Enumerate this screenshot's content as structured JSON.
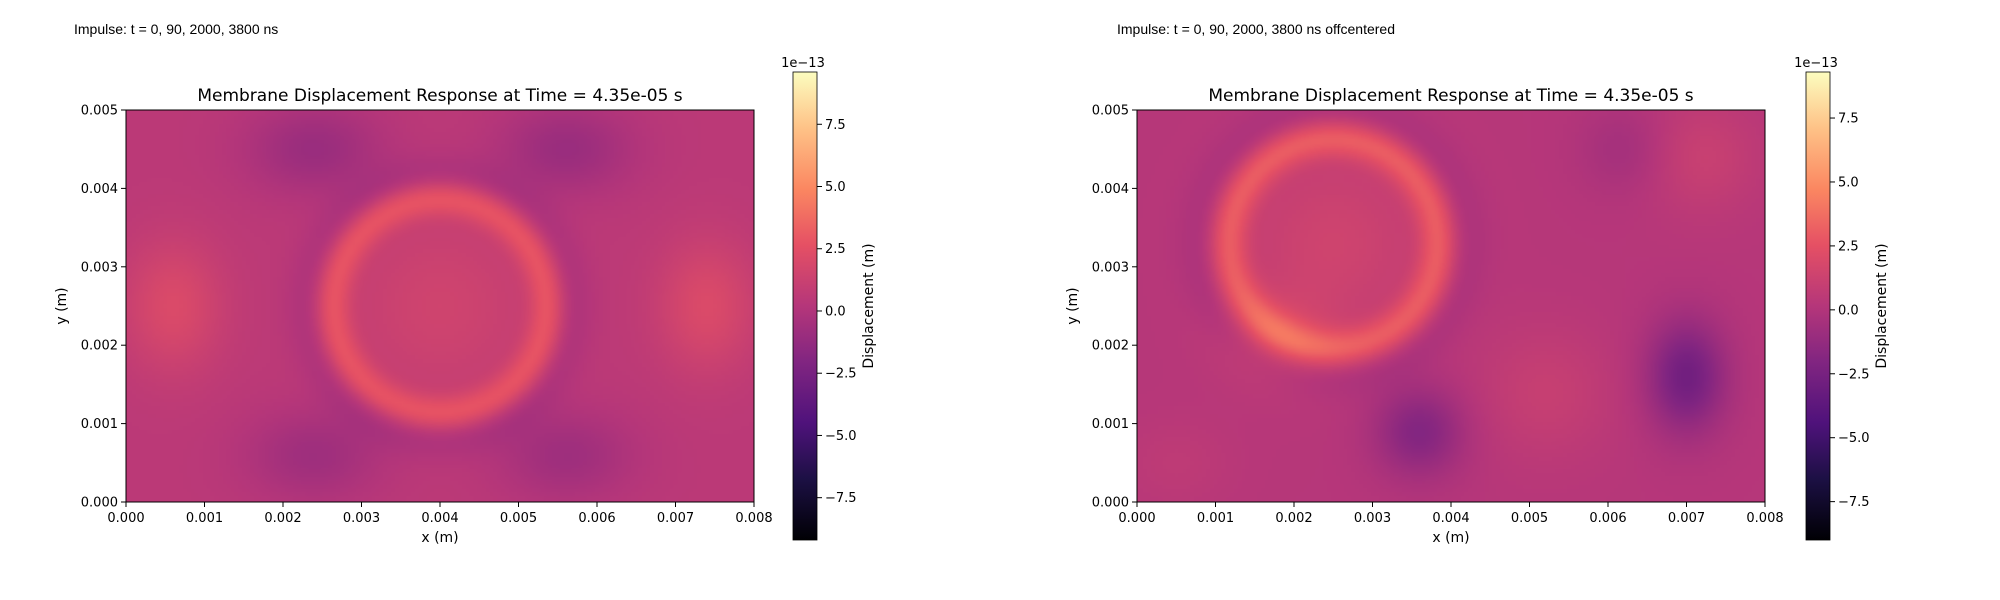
{
  "annotations": [
    "Impulse: t = 0, 90, 2000, 3800 ns",
    "Impulse: t = 0, 90, 2000, 3800 ns offcentered"
  ],
  "chart_data": [
    {
      "type": "heatmap",
      "title": "Membrane Displacement Response at Time = 4.35e-05 s",
      "xlabel": "x (m)",
      "ylabel": "y (m)",
      "xlim": [
        0,
        0.008
      ],
      "ylim": [
        0,
        0.005
      ],
      "x_ticks": [
        "0.000",
        "0.001",
        "0.002",
        "0.003",
        "0.004",
        "0.005",
        "0.006",
        "0.007",
        "0.008"
      ],
      "y_ticks": [
        "0.000",
        "0.001",
        "0.002",
        "0.003",
        "0.004",
        "0.005"
      ],
      "colormap": "magma",
      "colorbar": {
        "label": "Displacement (m)",
        "exponent": "1e−13",
        "range": [
          -9.2,
          9.6
        ],
        "ticks": [
          "−7.5",
          "−5.0",
          "−2.5",
          "0.0",
          "2.5",
          "5.0",
          "7.5"
        ],
        "tick_values": [
          -7.5,
          -5.0,
          -2.5,
          0.0,
          2.5,
          5.0,
          7.5
        ]
      },
      "background_value": 0.5,
      "features": [
        {
          "kind": "ring",
          "cx": 0.004,
          "cy": 0.0025,
          "r": 0.00138,
          "width": 0.00034,
          "amplitude": 2.9
        },
        {
          "kind": "ring",
          "cx": 0.004,
          "cy": 0.0025,
          "r": 0.00155,
          "width": 0.0005,
          "amplitude": -1.2
        },
        {
          "kind": "blob",
          "cx": 0.004,
          "cy": 0.0025,
          "sx": 0.0009,
          "sy": 0.0009,
          "amplitude": 1.0
        },
        {
          "kind": "blob",
          "cx": 0.0006,
          "cy": 0.0025,
          "sx": 0.00045,
          "sy": 0.0006,
          "amplitude": 1.6
        },
        {
          "kind": "blob",
          "cx": 0.0074,
          "cy": 0.0025,
          "sx": 0.00045,
          "sy": 0.0006,
          "amplitude": 1.6
        },
        {
          "kind": "blob",
          "cx": 0.0024,
          "cy": 0.0045,
          "sx": 0.0006,
          "sy": 0.0004,
          "amplitude": -1.5
        },
        {
          "kind": "blob",
          "cx": 0.0056,
          "cy": 0.0045,
          "sx": 0.0006,
          "sy": 0.0004,
          "amplitude": -1.5
        },
        {
          "kind": "blob",
          "cx": 0.0024,
          "cy": 0.0006,
          "sx": 0.0006,
          "sy": 0.0004,
          "amplitude": -1.3
        },
        {
          "kind": "blob",
          "cx": 0.0056,
          "cy": 0.0006,
          "sx": 0.0006,
          "sy": 0.0004,
          "amplitude": -1.3
        }
      ]
    },
    {
      "type": "heatmap",
      "title": "Membrane Displacement Response at Time = 4.35e-05 s",
      "xlabel": "x (m)",
      "ylabel": "y (m)",
      "xlim": [
        0,
        0.008
      ],
      "ylim": [
        0,
        0.005
      ],
      "x_ticks": [
        "0.000",
        "0.001",
        "0.002",
        "0.003",
        "0.004",
        "0.005",
        "0.006",
        "0.007",
        "0.008"
      ],
      "y_ticks": [
        "0.000",
        "0.001",
        "0.002",
        "0.003",
        "0.004",
        "0.005"
      ],
      "colormap": "magma",
      "colorbar": {
        "label": "Displacement (m)",
        "exponent": "1e−13",
        "range": [
          -9.0,
          9.3
        ],
        "ticks": [
          "−7.5",
          "−5.0",
          "−2.5",
          "0.0",
          "2.5",
          "5.0",
          "7.5"
        ],
        "tick_values": [
          -7.5,
          -5.0,
          -2.5,
          0.0,
          2.5,
          5.0,
          7.5
        ]
      },
      "background_value": 0.2,
      "features": [
        {
          "kind": "ring",
          "cx": 0.0025,
          "cy": 0.0033,
          "r": 0.00135,
          "width": 0.00036,
          "amplitude": 3.0
        },
        {
          "kind": "ring",
          "cx": 0.0025,
          "cy": 0.0033,
          "r": 0.00158,
          "width": 0.0005,
          "amplitude": -0.9
        },
        {
          "kind": "blob",
          "cx": 0.0025,
          "cy": 0.0033,
          "sx": 0.0009,
          "sy": 0.0009,
          "amplitude": 1.2
        },
        {
          "kind": "blob",
          "cx": 0.0018,
          "cy": 0.0021,
          "sx": 0.0005,
          "sy": 0.0004,
          "amplitude": 1.2
        },
        {
          "kind": "blob",
          "cx": 0.007,
          "cy": 0.0016,
          "sx": 0.00035,
          "sy": 0.0005,
          "amplitude": -3.0
        },
        {
          "kind": "blob",
          "cx": 0.0036,
          "cy": 0.0009,
          "sx": 0.0004,
          "sy": 0.0004,
          "amplitude": -2.2
        },
        {
          "kind": "blob",
          "cx": 0.0052,
          "cy": 0.0014,
          "sx": 0.0006,
          "sy": 0.0006,
          "amplitude": 0.8
        },
        {
          "kind": "blob",
          "cx": 0.0072,
          "cy": 0.0044,
          "sx": 0.0005,
          "sy": 0.0005,
          "amplitude": 0.9
        },
        {
          "kind": "blob",
          "cx": 0.0062,
          "cy": 0.0045,
          "sx": 0.0004,
          "sy": 0.0004,
          "amplitude": -0.8
        },
        {
          "kind": "blob",
          "cx": 0.0005,
          "cy": 0.0005,
          "sx": 0.0005,
          "sy": 0.0004,
          "amplitude": 0.4
        }
      ]
    }
  ]
}
